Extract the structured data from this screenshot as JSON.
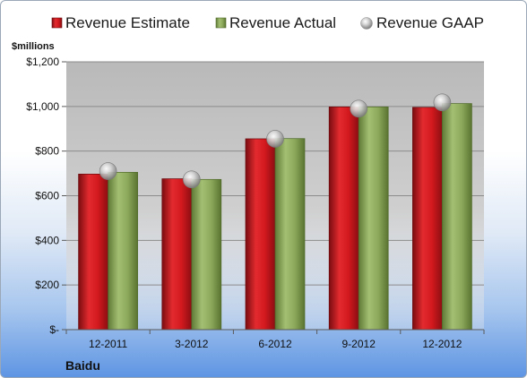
{
  "chart_data": {
    "type": "bar",
    "company": "Baidu",
    "ylabel": "$millions",
    "ylim": [
      0,
      1200
    ],
    "yticks": [
      {
        "value": 0,
        "label": "$-"
      },
      {
        "value": 200,
        "label": "$200"
      },
      {
        "value": 400,
        "label": "$400"
      },
      {
        "value": 600,
        "label": "$600"
      },
      {
        "value": 800,
        "label": "$800"
      },
      {
        "value": 1000,
        "label": "$1,000"
      },
      {
        "value": 1200,
        "label": "$1,200"
      }
    ],
    "categories": [
      "12-2011",
      "3-2012",
      "6-2012",
      "9-2012",
      "12-2012"
    ],
    "series": [
      {
        "name": "Revenue Estimate",
        "kind": "bar",
        "color": "#c8181e",
        "values": [
          697,
          676,
          855,
          998,
          996
        ]
      },
      {
        "name": "Revenue Actual",
        "kind": "bar",
        "color": "#8aa65a",
        "values": [
          705,
          673,
          856,
          998,
          1013
        ]
      },
      {
        "name": "Revenue GAAP",
        "kind": "marker",
        "color": "#b9b9b9",
        "values": [
          710,
          673,
          855,
          990,
          1018
        ]
      }
    ],
    "legend_position": "top",
    "grid": true
  }
}
